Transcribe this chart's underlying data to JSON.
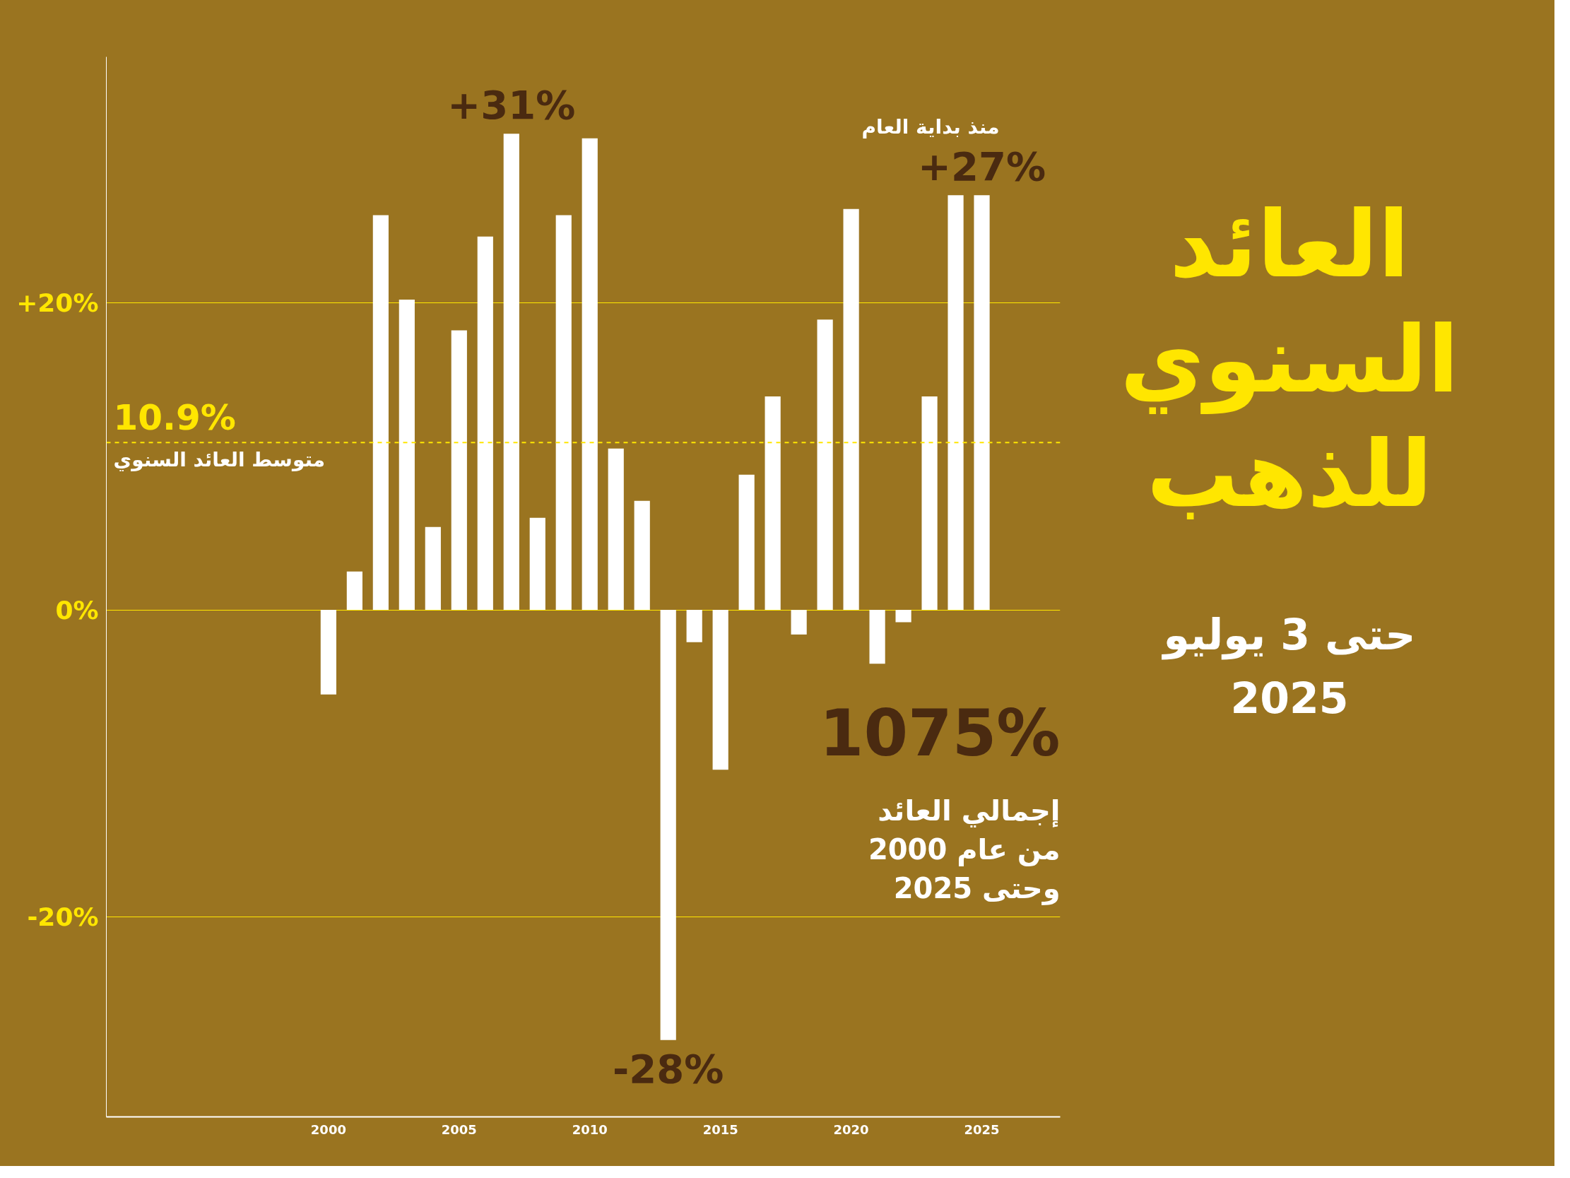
{
  "chart_data": {
    "type": "bar",
    "title": "العائد السنوي للذهب",
    "subtitle": "حتى 3 يوليو 2025",
    "x": [
      2000,
      2001,
      2002,
      2003,
      2004,
      2005,
      2006,
      2007,
      2008,
      2009,
      2010,
      2011,
      2012,
      2013,
      2014,
      2015,
      2016,
      2017,
      2018,
      2019,
      2020,
      2021,
      2022,
      2023,
      2024,
      2025
    ],
    "values": [
      -5.5,
      2.5,
      25.7,
      20.2,
      5.4,
      18.2,
      24.3,
      31,
      6.0,
      25.7,
      30.7,
      10.5,
      7.1,
      -28,
      -2.1,
      -10.4,
      8.8,
      13.9,
      -1.6,
      18.9,
      26.1,
      -3.5,
      -0.8,
      13.9,
      27,
      27
    ],
    "value_labels": [
      null,
      null,
      null,
      null,
      null,
      null,
      null,
      "+31%",
      null,
      null,
      null,
      null,
      null,
      "-28%",
      null,
      null,
      null,
      null,
      null,
      null,
      null,
      null,
      null,
      null,
      null,
      "+27%"
    ],
    "color": "#ffffff",
    "xlim": [
      1991.5,
      2028
    ],
    "xticks": [
      2000,
      2005,
      2010,
      2015,
      2020,
      2025
    ],
    "ylim": [
      -33,
      36
    ],
    "yticks": [
      {
        "value": 20,
        "label": "+20%"
      },
      {
        "value": 0,
        "label": "0%"
      },
      {
        "value": -20,
        "label": "-20%"
      }
    ],
    "grid": "y",
    "ref_lines": [
      {
        "axis": "y",
        "value": 10.9,
        "label": "10.9%\nمتوسط العائد السنوي",
        "color": "#ffe600",
        "line_style": "dashed"
      }
    ],
    "annotations": [
      {
        "text": "منذ بداية العام",
        "x": 2025,
        "y": 27
      },
      "1075%",
      "إجمالي العائد\nمن عام 2000\nوحتى 2025"
    ]
  }
}
